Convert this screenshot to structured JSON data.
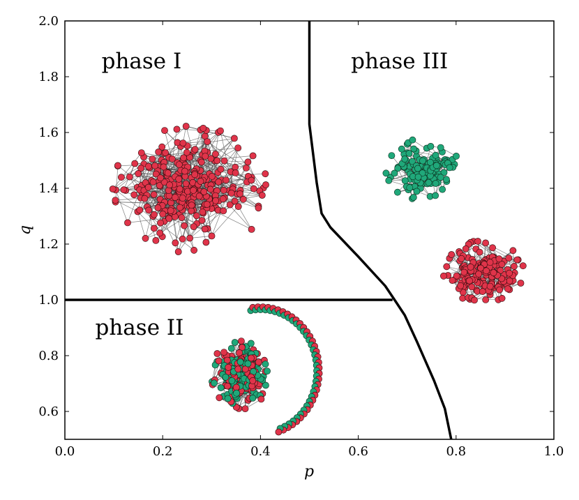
{
  "chart_data": {
    "type": "scatter",
    "title": "",
    "xlabel": "p",
    "ylabel": "q",
    "xlim": [
      0.0,
      1.0
    ],
    "ylim": [
      0.5,
      2.0
    ],
    "xticks": [
      0.0,
      0.2,
      0.4,
      0.6,
      0.8,
      1.0
    ],
    "xtick_labels": [
      "0.0",
      "0.2",
      "0.4",
      "0.6",
      "0.8",
      "1.0"
    ],
    "yticks": [
      0.6,
      0.8,
      1.0,
      1.2,
      1.4,
      1.6,
      1.8,
      2.0
    ],
    "ytick_labels": [
      "0.6",
      "0.8",
      "1.0",
      "1.2",
      "1.4",
      "1.6",
      "1.8",
      "2.0"
    ],
    "phase_boundaries": [
      {
        "name": "phase-I-II-boundary",
        "x": [
          0.0,
          0.67
        ],
        "y": [
          1.0,
          1.0
        ]
      },
      {
        "name": "phase-III-boundary",
        "x": [
          0.5,
          0.5,
          0.5,
          0.515,
          0.525,
          0.543,
          0.6,
          0.655,
          0.678,
          0.695,
          0.72,
          0.755,
          0.777,
          0.79
        ],
        "y": [
          2.0,
          1.8,
          1.63,
          1.42,
          1.31,
          1.26,
          1.155,
          1.05,
          0.99,
          0.945,
          0.85,
          0.71,
          0.61,
          0.5
        ]
      }
    ],
    "annotations": [
      {
        "name": "phase-i-label",
        "text": "phase I",
        "x": 0.075,
        "y": 1.83
      },
      {
        "name": "phase-ii-label",
        "text": "phase II",
        "x": 0.062,
        "y": 0.875
      },
      {
        "name": "phase-iii-label",
        "text": "phase III",
        "x": 0.585,
        "y": 1.83
      }
    ],
    "network_insets": [
      {
        "name": "phase-i-network",
        "shape": "blob",
        "cx": 0.255,
        "cy": 1.4,
        "rx": 0.145,
        "ry": 0.2,
        "count": 300,
        "colors": [
          "red"
        ],
        "density": 2.6,
        "seed": 11
      },
      {
        "name": "phase-iii-green-network",
        "shape": "blob",
        "cx": 0.735,
        "cy": 1.47,
        "rx": 0.07,
        "ry": 0.1,
        "count": 130,
        "colors": [
          "green"
        ],
        "density": 2.2,
        "seed": 23
      },
      {
        "name": "phase-iii-red-network",
        "shape": "blob",
        "cx": 0.855,
        "cy": 1.1,
        "rx": 0.075,
        "ry": 0.1,
        "count": 170,
        "colors": [
          "red"
        ],
        "density": 2.2,
        "seed": 37
      },
      {
        "name": "phase-ii-mixed-network",
        "shape": "blob",
        "cx": 0.36,
        "cy": 0.73,
        "rx": 0.055,
        "ry": 0.11,
        "count": 240,
        "colors": [
          "red",
          "green"
        ],
        "density": 2.4,
        "seed": 53
      },
      {
        "name": "phase-ii-ring-network",
        "shape": "arc",
        "cx": 0.4,
        "cy": 0.745,
        "rx": 0.115,
        "ry": 0.22,
        "angle_start": 100,
        "angle_end": -72,
        "count": 70,
        "colors": [
          "green",
          "red"
        ],
        "seed": 71
      }
    ],
    "colors": {
      "red": "#e0344a",
      "green": "#20a87a",
      "edge": "#555555",
      "boundary": "#000000"
    }
  }
}
